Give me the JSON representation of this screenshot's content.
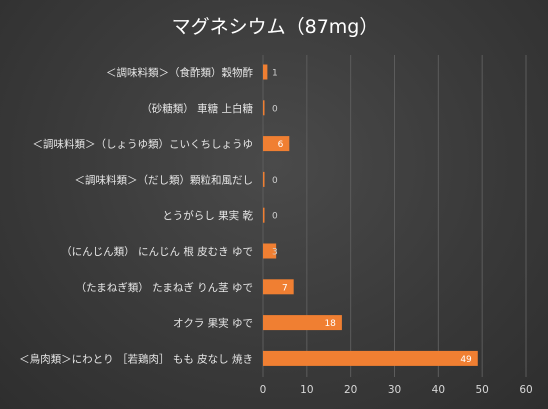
{
  "chart_data": {
    "type": "bar",
    "orientation": "horizontal",
    "title": "マグネシウム（87mg）",
    "xlabel": "",
    "ylabel": "",
    "categories": [
      "＜調味料類＞（食酢類）穀物酢",
      "（砂糖類） 車糖 上白糖",
      "＜調味料類＞（しょうゆ類）こいくちしょうゆ",
      "＜調味料類＞（だし類）顆粒和風だし",
      "とうがらし 果実 乾",
      "（にんじん類） にんじん 根 皮むき ゆで",
      "（たまねぎ類） たまねぎ りん茎 ゆで",
      "オクラ 果実 ゆで",
      "＜鳥肉類＞にわとり ［若鶏肉］ もも 皮なし 焼き"
    ],
    "values": [
      1,
      0,
      6,
      0,
      0,
      3,
      7,
      18,
      49
    ],
    "data_labels": [
      "1",
      "0",
      "6",
      "0",
      "0",
      "3",
      "7",
      "18",
      "49"
    ],
    "xlim": [
      0,
      60
    ],
    "xticks": [
      "0",
      "10",
      "20",
      "30",
      "40",
      "50",
      "60"
    ],
    "grid": true,
    "legend": "none",
    "colors": {
      "bar": "#f07f32",
      "background": "#3a3a3a",
      "text": "#e6e6e6",
      "label_inside": "#ffffff",
      "label_outside": "#d0d0d0"
    }
  }
}
